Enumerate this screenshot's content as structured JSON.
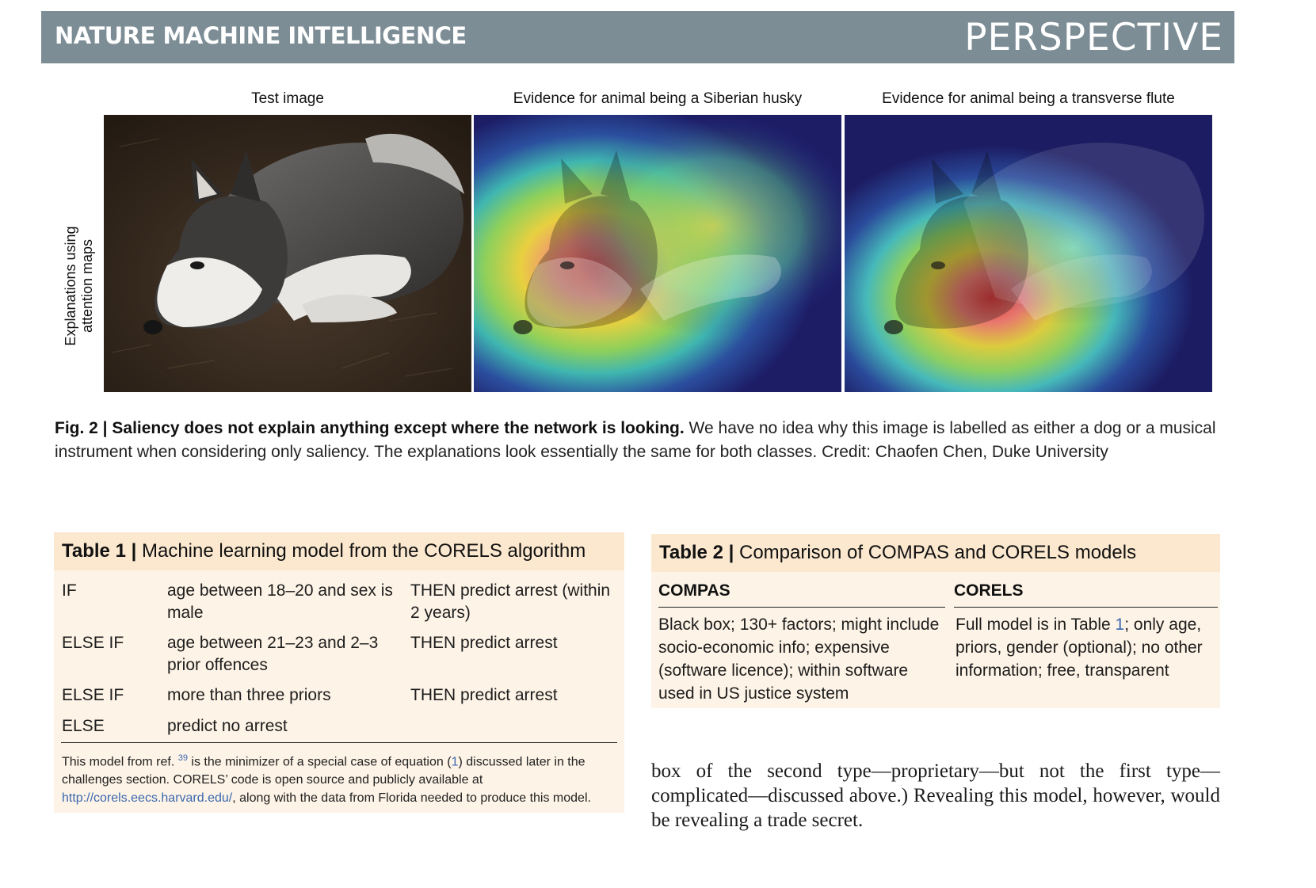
{
  "header": {
    "journal": "NATURE MACHINE INTELLIGENCE",
    "section": "PERSPECTIVE"
  },
  "figure": {
    "row_label_line1": "Explanations using",
    "row_label_line2": "attention maps",
    "panels": [
      {
        "title": "Test image"
      },
      {
        "title": "Evidence for animal being a Siberian husky"
      },
      {
        "title": "Evidence for animal being a transverse flute"
      }
    ],
    "caption_bold": "Fig. 2 | Saliency does not explain anything except where the network is looking.",
    "caption_text": " We have no idea why this image is labelled as either a dog or a musical instrument when considering only saliency. The explanations look essentially the same for both classes. Credit: Chaofen Chen, Duke University"
  },
  "table1": {
    "title_bold": "Table 1 |",
    "title_text": " Machine learning model from the CORELS algorithm",
    "rows": [
      {
        "c1": "IF",
        "c2": "age between 18–20 and sex is male",
        "c3": "THEN predict arrest (within 2 years)"
      },
      {
        "c1": "ELSE IF",
        "c2": "age between 21–23 and 2–3 prior offences",
        "c3": "THEN predict arrest"
      },
      {
        "c1": "ELSE IF",
        "c2": "more than three priors",
        "c3": "THEN predict arrest"
      },
      {
        "c1": "ELSE",
        "c2": "predict no arrest",
        "c3": ""
      }
    ],
    "foot_a": "This model from ref. ",
    "foot_ref": "39",
    "foot_b": " is the minimizer of a special case of equation (",
    "foot_eq": "1",
    "foot_c": ") discussed later in the challenges section. CORELS’ code is open source and publicly available at ",
    "foot_link": "http://corels.eecs.harvard.edu/",
    "foot_d": ", along with the data from Florida needed to produce this model."
  },
  "table2": {
    "title_bold": "Table 2 |",
    "title_text": " Comparison of COMPAS and CORELS models",
    "col1_head": "COMPAS",
    "col2_head": "CORELS",
    "col1_text": "Black box; 130+ factors; might include socio-economic info; expensive (software licence); within software used in US justice system",
    "col2_a": "Full model is in Table ",
    "col2_ref": "1",
    "col2_b": "; only age, priors, gender (optional); no other information; free, transparent"
  },
  "body": {
    "paragraph": "box of the second type—proprietary—but not the first type—complicated—discussed above.) Revealing this model, however, would be revealing a trade secret."
  }
}
